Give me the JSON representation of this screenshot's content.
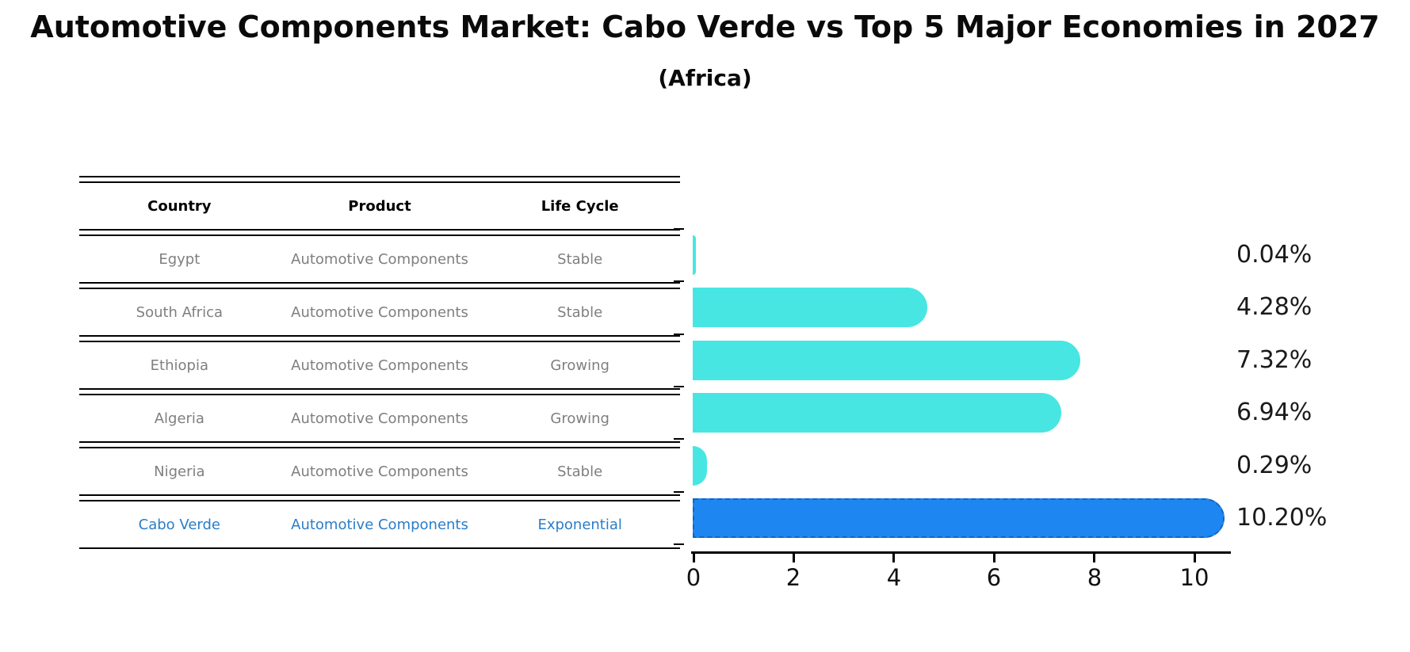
{
  "title": "Automotive Components Market: Cabo Verde vs Top 5 Major Economies in 2027",
  "subtitle": "(Africa)",
  "table": {
    "headers": [
      "Country",
      "Product",
      "Life Cycle"
    ],
    "rows": [
      {
        "country": "Egypt",
        "product": "Automotive Components",
        "life_cycle": "Stable",
        "highlight": false
      },
      {
        "country": "South Africa",
        "product": "Automotive Components",
        "life_cycle": "Stable",
        "highlight": false
      },
      {
        "country": "Ethiopia",
        "product": "Automotive Components",
        "life_cycle": "Growing",
        "highlight": false
      },
      {
        "country": "Algeria",
        "product": "Automotive Components",
        "life_cycle": "Growing",
        "highlight": false
      },
      {
        "country": "Nigeria",
        "product": "Automotive Components",
        "life_cycle": "Stable",
        "highlight": false
      },
      {
        "country": "Cabo Verde",
        "product": "Automotive Components",
        "life_cycle": "Exponential",
        "highlight": true
      }
    ]
  },
  "chart_data": {
    "type": "bar",
    "orientation": "horizontal",
    "categories": [
      "Egypt",
      "South Africa",
      "Ethiopia",
      "Algeria",
      "Nigeria",
      "Cabo Verde"
    ],
    "values": [
      0.04,
      4.28,
      7.32,
      6.94,
      0.29,
      10.2
    ],
    "value_labels": [
      "0.04%",
      "4.28%",
      "7.32%",
      "6.94%",
      "0.29%",
      "10.20%"
    ],
    "x_ticks": [
      0,
      2,
      4,
      6,
      8,
      10
    ],
    "xlim": [
      0,
      10.7
    ],
    "grid": false,
    "legend": "none",
    "bar_color": "#47e6e2",
    "highlight_category": "Cabo Verde",
    "highlight_bar_color": "#1e86f0",
    "highlight_bar_border_color": "#1565c0"
  },
  "colors": {
    "background": "#ffffff",
    "table_text_gray": "#7f7f7f",
    "highlight_text_blue": "#2a7dc7",
    "axis_black": "#000000"
  }
}
